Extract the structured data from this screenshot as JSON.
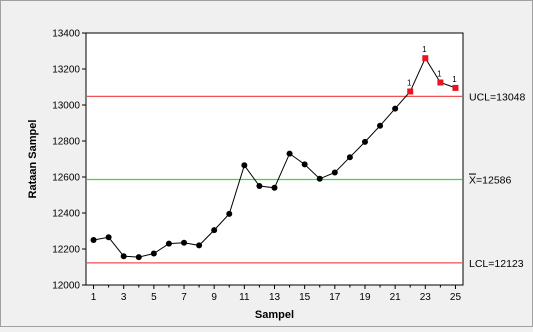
{
  "chart_data": {
    "type": "line",
    "title": "",
    "xlabel": "Sampel",
    "ylabel": "Rataan Sampel",
    "xlim": [
      0.5,
      25.5
    ],
    "ylim": [
      12000,
      13400
    ],
    "x_ticks": [
      1,
      3,
      5,
      7,
      9,
      11,
      13,
      15,
      17,
      19,
      21,
      23,
      25
    ],
    "y_ticks": [
      12000,
      12200,
      12400,
      12600,
      12800,
      13000,
      13200,
      13400
    ],
    "x": [
      1,
      2,
      3,
      4,
      5,
      6,
      7,
      8,
      9,
      10,
      11,
      12,
      13,
      14,
      15,
      16,
      17,
      18,
      19,
      20,
      21,
      22,
      23,
      24,
      25
    ],
    "series": [
      {
        "values": [
          12250,
          12265,
          12160,
          12155,
          12175,
          12230,
          12235,
          12220,
          12305,
          12395,
          12665,
          12550,
          12540,
          12730,
          12670,
          12590,
          12625,
          12710,
          12795,
          12885,
          12980,
          13075,
          13260,
          13125,
          13095
        ],
        "color": "#000000",
        "out_of_control_color": "#e8141e",
        "out_of_control_points": [
          22,
          23,
          24,
          25
        ],
        "out_of_control_labels": [
          "1",
          "1",
          "1",
          "1"
        ]
      }
    ],
    "control_lines": [
      {
        "label": "UCL=13048",
        "value": 13048,
        "color": "#f05050"
      },
      {
        "label_bar": "X",
        "label_rest": "=12586",
        "value": 12586,
        "color": "#33dd33"
      },
      {
        "label": "LCL=12123",
        "value": 12123,
        "color": "#f05050"
      }
    ],
    "grid": false,
    "legend": "none"
  }
}
